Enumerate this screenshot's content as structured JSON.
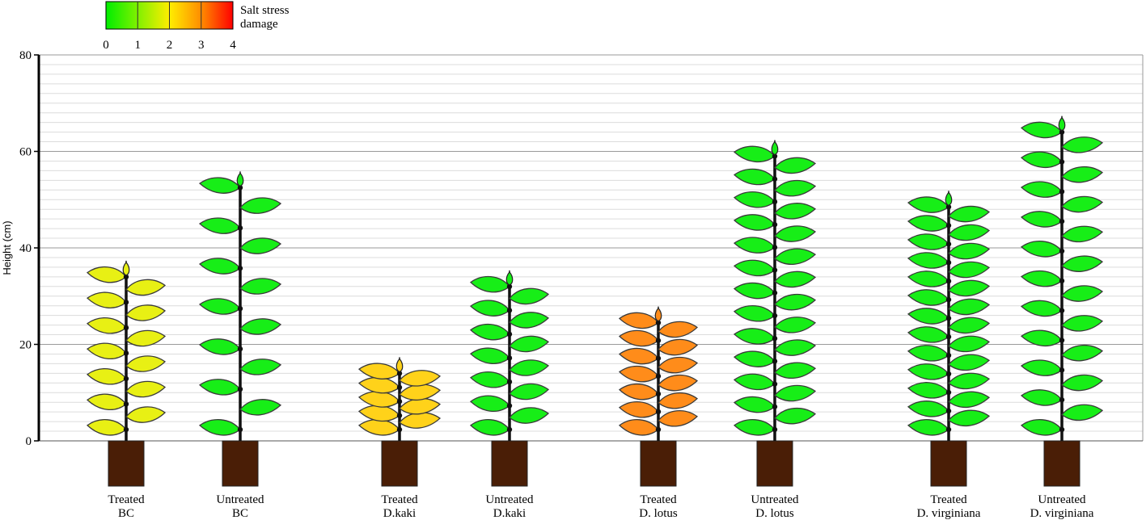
{
  "chart_data": {
    "type": "pictorial-bar",
    "title": "",
    "xlabel": "",
    "ylabel": "Height (cm)",
    "ylim": [
      0,
      80
    ],
    "yticks": [
      0,
      20,
      40,
      60,
      80
    ],
    "grid": true,
    "legend": {
      "title_lines": [
        "Salt stress",
        "damage"
      ],
      "ticks": [
        "0",
        "1",
        "2",
        "3",
        "4"
      ],
      "colors": [
        "#00ee00",
        "#80f000",
        "#ffee00",
        "#ff8c00",
        "#ff0000"
      ],
      "placement": "top-left"
    },
    "categories": [
      {
        "label_lines": [
          "Treated",
          "BC"
        ],
        "height": 36,
        "damage": 2.0,
        "nodes": 7,
        "color": "#e8f014"
      },
      {
        "label_lines": [
          "Untreated",
          "BC"
        ],
        "height": 54.5,
        "damage": 0.3,
        "nodes": 7,
        "color": "#17ee17"
      },
      {
        "label_lines": [
          "Treated",
          "D.kaki"
        ],
        "height": 16,
        "damage": 2.3,
        "nodes": 5,
        "color": "#ffd21a"
      },
      {
        "label_lines": [
          "Untreated",
          "D.kaki"
        ],
        "height": 34,
        "damage": 0.3,
        "nodes": 7,
        "color": "#17ee17"
      },
      {
        "label_lines": [
          "Treated",
          "D. lotus"
        ],
        "height": 26.5,
        "damage": 3.0,
        "nodes": 7,
        "color": "#ff8c1a"
      },
      {
        "label_lines": [
          "Untreated",
          "D. lotus"
        ],
        "height": 61,
        "damage": 0.2,
        "nodes": 13,
        "color": "#17ee17"
      },
      {
        "label_lines": [
          "Treated",
          "D. virginiana"
        ],
        "height": 50.5,
        "damage": 0.2,
        "nodes": 13,
        "color": "#17ee17"
      },
      {
        "label_lines": [
          "Untreated",
          "D. virginiana"
        ],
        "height": 66,
        "damage": 0.2,
        "nodes": 11,
        "color": "#17ee17"
      }
    ]
  }
}
